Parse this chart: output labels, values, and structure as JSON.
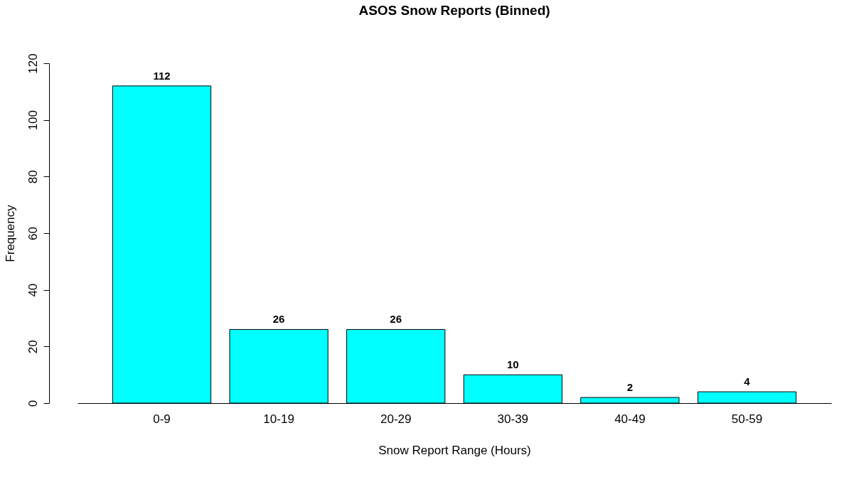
{
  "chart_data": {
    "type": "bar",
    "title": "ASOS Snow Reports (Binned)",
    "xlabel": "Snow Report Range (Hours)",
    "ylabel": "Frequency",
    "categories": [
      "0-9",
      "10-19",
      "20-29",
      "30-39",
      "40-49",
      "50-59"
    ],
    "values": [
      112,
      26,
      26,
      10,
      2,
      4
    ],
    "color": "#00ffff",
    "ylim": [
      0,
      120
    ],
    "yticks": [
      0,
      20,
      40,
      60,
      80,
      100,
      120
    ],
    "grid": false,
    "data_labels": true
  }
}
